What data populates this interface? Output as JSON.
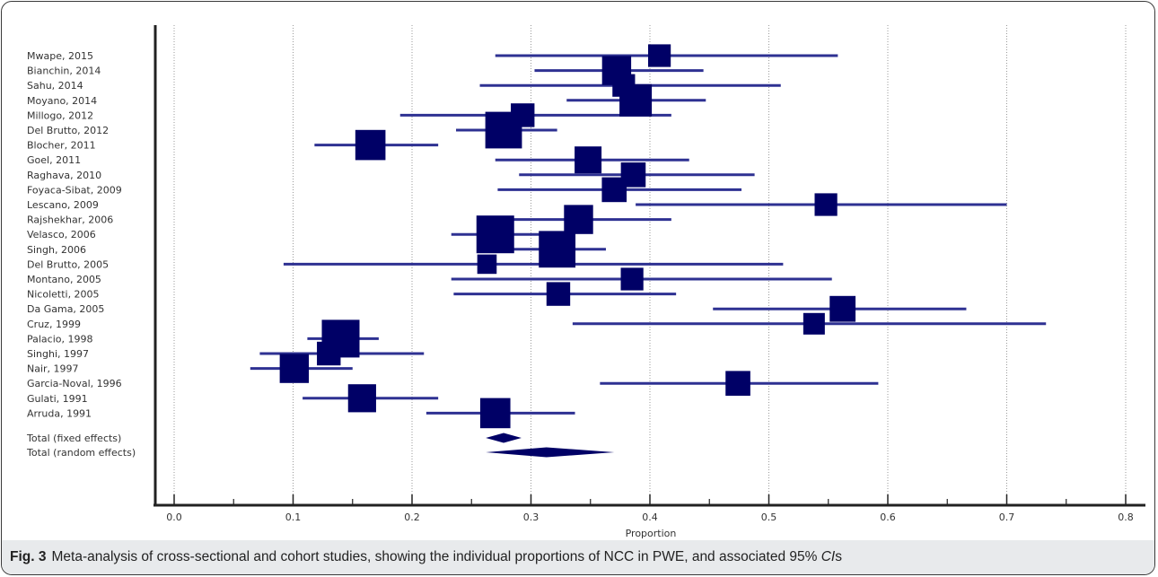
{
  "caption": {
    "label": "Fig. 3",
    "text_before": "Meta-analysis of cross-sectional and cohort studies, showing the individual proportions of NCC in PWE, and associated 95%",
    "ci_italic": "CI",
    "text_after": "s"
  },
  "chart_data": {
    "type": "forest",
    "xlabel": "Proportion",
    "xlim": [
      0,
      0.8
    ],
    "xticks": [
      "0.0",
      "0.1",
      "0.2",
      "0.3",
      "0.4",
      "0.5",
      "0.6",
      "0.7",
      "0.8"
    ],
    "grid": true,
    "marker_color": "#000066",
    "ci_color": "#2e3192",
    "studies": [
      {
        "label": "Mwape, 2015",
        "est": 0.408,
        "lo": 0.27,
        "hi": 0.558,
        "weight": 0.55
      },
      {
        "label": "Bianchin, 2014",
        "est": 0.372,
        "lo": 0.303,
        "hi": 0.445,
        "weight": 0.85
      },
      {
        "label": "Sahu, 2014",
        "est": 0.378,
        "lo": 0.257,
        "hi": 0.51,
        "weight": 0.55
      },
      {
        "label": "Moyano, 2014",
        "est": 0.388,
        "lo": 0.33,
        "hi": 0.447,
        "weight": 1.0
      },
      {
        "label": "Millogo, 2012",
        "est": 0.293,
        "lo": 0.19,
        "hi": 0.418,
        "weight": 0.6
      },
      {
        "label": "Del Brutto, 2012",
        "est": 0.277,
        "lo": 0.237,
        "hi": 0.322,
        "weight": 1.2
      },
      {
        "label": "Blocher, 2011",
        "est": 0.165,
        "lo": 0.118,
        "hi": 0.222,
        "weight": 0.9
      },
      {
        "label": "Goel, 2011",
        "est": 0.348,
        "lo": 0.27,
        "hi": 0.433,
        "weight": 0.75
      },
      {
        "label": "Raghava, 2010",
        "est": 0.386,
        "lo": 0.29,
        "hi": 0.488,
        "weight": 0.65
      },
      {
        "label": "Foyaca-Sibat, 2009",
        "est": 0.37,
        "lo": 0.272,
        "hi": 0.477,
        "weight": 0.65
      },
      {
        "label": "Lescano, 2009",
        "est": 0.548,
        "lo": 0.388,
        "hi": 0.7,
        "weight": 0.55
      },
      {
        "label": "Rajshekhar, 2006",
        "est": 0.34,
        "lo": 0.268,
        "hi": 0.418,
        "weight": 0.85
      },
      {
        "label": "Velasco, 2006",
        "est": 0.27,
        "lo": 0.233,
        "hi": 0.31,
        "weight": 1.25
      },
      {
        "label": "Singh, 2006",
        "est": 0.322,
        "lo": 0.283,
        "hi": 0.363,
        "weight": 1.2
      },
      {
        "label": "Del Brutto, 2005",
        "est": 0.263,
        "lo": 0.092,
        "hi": 0.512,
        "weight": 0.4
      },
      {
        "label": "Montano, 2005",
        "est": 0.385,
        "lo": 0.233,
        "hi": 0.553,
        "weight": 0.55
      },
      {
        "label": "Nicoletti, 2005",
        "est": 0.323,
        "lo": 0.235,
        "hi": 0.422,
        "weight": 0.6
      },
      {
        "label": "Da Gama, 2005",
        "est": 0.562,
        "lo": 0.453,
        "hi": 0.666,
        "weight": 0.7
      },
      {
        "label": "Cruz, 1999",
        "est": 0.538,
        "lo": 0.335,
        "hi": 0.733,
        "weight": 0.5
      },
      {
        "label": "Palacio, 1998",
        "est": 0.14,
        "lo": 0.112,
        "hi": 0.172,
        "weight": 1.25
      },
      {
        "label": "Singhi, 1997",
        "est": 0.13,
        "lo": 0.072,
        "hi": 0.21,
        "weight": 0.6
      },
      {
        "label": "Nair, 1997",
        "est": 0.101,
        "lo": 0.064,
        "hi": 0.15,
        "weight": 0.85
      },
      {
        "label": "Garcia-Noval, 1996",
        "est": 0.474,
        "lo": 0.358,
        "hi": 0.592,
        "weight": 0.65
      },
      {
        "label": "Gulati, 1991",
        "est": 0.158,
        "lo": 0.108,
        "hi": 0.222,
        "weight": 0.8
      },
      {
        "label": "Arruda, 1991",
        "est": 0.27,
        "lo": 0.212,
        "hi": 0.337,
        "weight": 0.9
      }
    ],
    "pooled": [
      {
        "label": "Total (fixed effects)",
        "est": 0.277,
        "lo": 0.262,
        "hi": 0.292
      },
      {
        "label": "Total (random effects)",
        "est": 0.313,
        "lo": 0.262,
        "hi": 0.37
      }
    ]
  }
}
